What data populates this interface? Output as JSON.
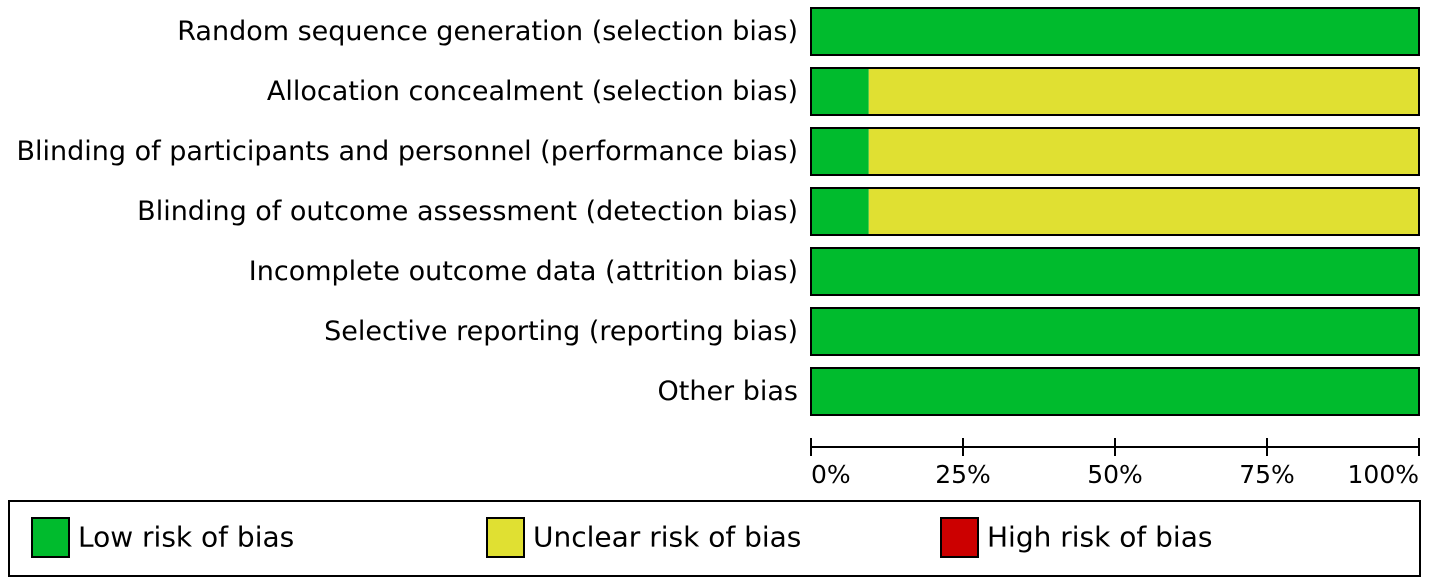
{
  "chart_data": {
    "type": "bar",
    "orientation": "horizontal",
    "stacked": true,
    "title": "",
    "xlabel": "",
    "ylabel": "",
    "xlim": [
      0,
      100
    ],
    "x_ticks": [
      0,
      25,
      50,
      75,
      100
    ],
    "x_tick_labels": [
      "0%",
      "25%",
      "50%",
      "75%",
      "100%"
    ],
    "categories": [
      "Random sequence generation (selection bias)",
      "Allocation concealment (selection bias)",
      "Blinding of participants and personnel (performance bias)",
      "Blinding of outcome assessment (detection bias)",
      "Incomplete outcome data (attrition bias)",
      "Selective reporting (reporting bias)",
      "Other bias"
    ],
    "series": [
      {
        "name": "Low risk of bias",
        "color": "#00bb2d",
        "values": [
          100,
          9.5,
          9.5,
          9.5,
          100,
          100,
          100
        ]
      },
      {
        "name": "Unclear risk of bias",
        "color": "#e0e032",
        "values": [
          0,
          90.5,
          90.5,
          90.5,
          0,
          0,
          0
        ]
      },
      {
        "name": "High risk of bias",
        "color": "#cc0000",
        "values": [
          0,
          0,
          0,
          0,
          0,
          0,
          0
        ]
      }
    ],
    "legend_position": "bottom",
    "grid": false
  }
}
